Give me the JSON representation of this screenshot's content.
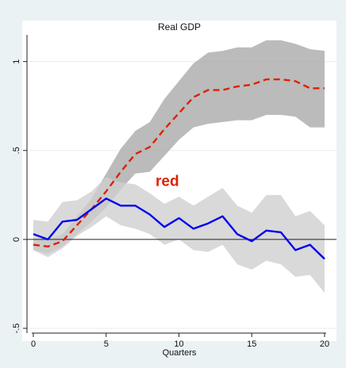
{
  "chart_data": {
    "type": "line",
    "title": "Real GDP",
    "xlabel": "Quarters",
    "ylabel": "",
    "xlim": [
      0,
      20
    ],
    "ylim": [
      -0.5,
      1.15
    ],
    "x_ticks": [
      0,
      5,
      10,
      15,
      20
    ],
    "x_tick_labels": [
      "0",
      "5",
      "10",
      "15",
      "20"
    ],
    "y_ticks": [
      -0.5,
      0,
      0.5,
      1
    ],
    "y_tick_labels": [
      "-.5",
      "0",
      ".5",
      "1"
    ],
    "grid": "horizontal",
    "zero_line": true,
    "annotation": {
      "text": "red",
      "x": 9.2,
      "y": 0.3,
      "color": "#dd2200"
    },
    "x": [
      0,
      1,
      2,
      3,
      4,
      5,
      6,
      7,
      8,
      9,
      10,
      11,
      12,
      13,
      14,
      15,
      16,
      17,
      18,
      19,
      20
    ],
    "series": [
      {
        "color": "#dd2200",
        "style": "dashed",
        "values": [
          -0.03,
          -0.04,
          -0.01,
          0.08,
          0.17,
          0.27,
          0.38,
          0.48,
          0.52,
          0.62,
          0.71,
          0.8,
          0.84,
          0.84,
          0.86,
          0.87,
          0.9,
          0.9,
          0.89,
          0.85,
          0.85
        ],
        "band_lower": [
          -0.06,
          -0.08,
          -0.04,
          0.03,
          0.1,
          0.18,
          0.28,
          0.37,
          0.38,
          0.47,
          0.56,
          0.63,
          0.65,
          0.66,
          0.67,
          0.67,
          0.7,
          0.7,
          0.69,
          0.63,
          0.63
        ],
        "band_upper": [
          0.0,
          0.0,
          0.03,
          0.13,
          0.23,
          0.37,
          0.51,
          0.61,
          0.66,
          0.79,
          0.89,
          0.99,
          1.05,
          1.06,
          1.08,
          1.08,
          1.12,
          1.12,
          1.1,
          1.07,
          1.06
        ],
        "band_color": "#aaaaaa"
      },
      {
        "color": "#0000ee",
        "style": "solid",
        "values": [
          0.03,
          0.0,
          0.1,
          0.11,
          0.17,
          0.23,
          0.19,
          0.19,
          0.14,
          0.07,
          0.12,
          0.06,
          0.09,
          0.13,
          0.03,
          -0.01,
          0.05,
          0.04,
          -0.06,
          -0.03,
          -0.11
        ],
        "band_lower": [
          -0.06,
          -0.1,
          -0.05,
          0.02,
          0.07,
          0.13,
          0.08,
          0.06,
          0.03,
          -0.03,
          0.0,
          -0.06,
          -0.07,
          -0.03,
          -0.14,
          -0.17,
          -0.12,
          -0.14,
          -0.21,
          -0.2,
          -0.3
        ],
        "band_upper": [
          0.11,
          0.1,
          0.21,
          0.22,
          0.27,
          0.35,
          0.32,
          0.31,
          0.26,
          0.2,
          0.24,
          0.19,
          0.24,
          0.29,
          0.19,
          0.15,
          0.25,
          0.25,
          0.13,
          0.16,
          0.08
        ],
        "band_color": "#d0d0d0"
      }
    ]
  }
}
